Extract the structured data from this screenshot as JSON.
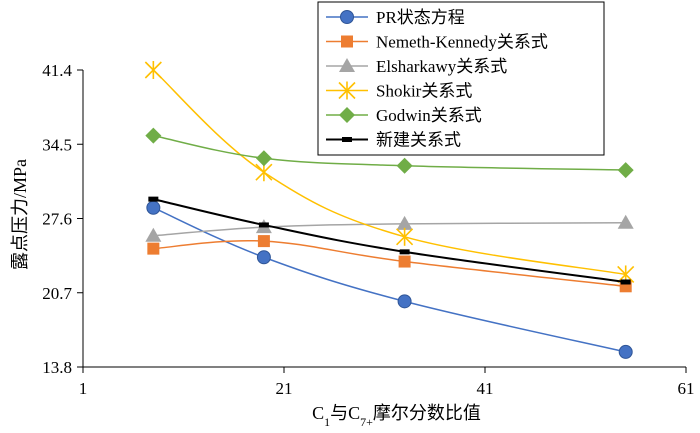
{
  "chart_data": {
    "type": "line",
    "title": "",
    "xlabel": "C₁与C₇₊摩尔分数比值",
    "ylabel": "露点压力/MPa",
    "xlim": [
      1,
      61
    ],
    "ylim": [
      13.8,
      41.4
    ],
    "xticks": [
      "1",
      "21",
      "41",
      "61"
    ],
    "yticks": [
      "13.8",
      "20.7",
      "27.6",
      "34.5",
      "41.4"
    ],
    "grid": false,
    "legend_position": "top-right",
    "x": [
      8,
      19,
      33,
      55
    ],
    "series": [
      {
        "name": "PR状态方程",
        "color": "#4472C4",
        "marker": "circle",
        "values": [
          28.6,
          24.0,
          19.9,
          15.2
        ]
      },
      {
        "name": "Nemeth-Kennedy关系式",
        "color": "#ED7D31",
        "marker": "square",
        "values": [
          24.8,
          25.5,
          23.6,
          21.3
        ]
      },
      {
        "name": "Elsharkawy关系式",
        "color": "#A5A5A5",
        "marker": "triangle",
        "values": [
          26.0,
          26.8,
          27.1,
          27.2
        ]
      },
      {
        "name": "Shokir关系式",
        "color": "#FFC000",
        "marker": "asterisk",
        "values": [
          41.4,
          31.9,
          25.9,
          22.4
        ]
      },
      {
        "name": "Godwin关系式",
        "color": "#70AD47",
        "marker": "diamond",
        "values": [
          35.3,
          33.2,
          32.5,
          32.1
        ]
      },
      {
        "name": "新建关系式",
        "color": "#000000",
        "marker": "dash",
        "values": [
          29.4,
          27.0,
          24.5,
          21.7
        ]
      }
    ]
  }
}
